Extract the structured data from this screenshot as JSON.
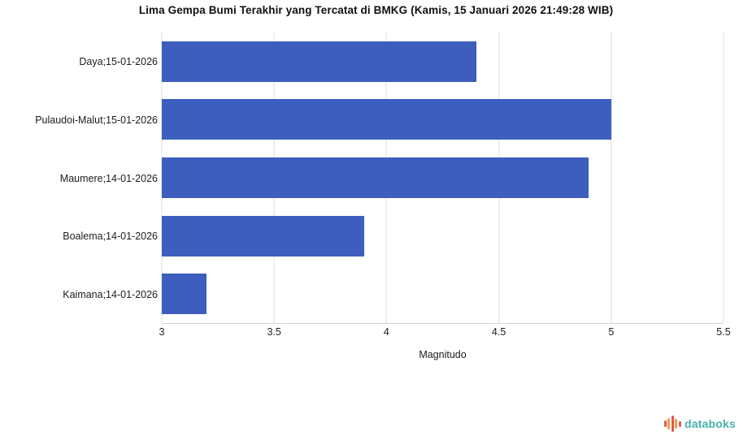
{
  "title": "Lima Gempa Bumi Terakhir yang Tercatat di BMKG (Kamis, 15 Januari 2026 21:49:28 WIB)",
  "chart_data": {
    "type": "bar",
    "orientation": "horizontal",
    "title": "Lima Gempa Bumi Terakhir yang Tercatat di BMKG (Kamis, 15 Januari 2026 21:49:28 WIB)",
    "categories": [
      "Daya;15-01-2026",
      "Pulaudoi-Malut;15-01-2026",
      "Maumere;14-01-2026",
      "Boalema;14-01-2026",
      "Kaimana;14-01-2026"
    ],
    "values": [
      4.4,
      5.0,
      4.9,
      3.9,
      3.2
    ],
    "xlabel": "Magnitudo",
    "ylabel": "",
    "xlim": [
      3,
      5.5
    ],
    "xticks": [
      3,
      3.5,
      4,
      4.5,
      5,
      5.5
    ],
    "tick_labels": [
      "3",
      "3.5",
      "4",
      "4.5",
      "5",
      "5.5"
    ],
    "grid": true,
    "legend": false,
    "bar_color": "#3d5ebe",
    "gridline_color": "#dddddd"
  },
  "footer": {
    "brand": "databoks",
    "brand_color": "#45b0ac",
    "logo_icon": "waveform-bars-icon",
    "logo_colors": [
      "#e2574c",
      "#f59b50"
    ]
  }
}
